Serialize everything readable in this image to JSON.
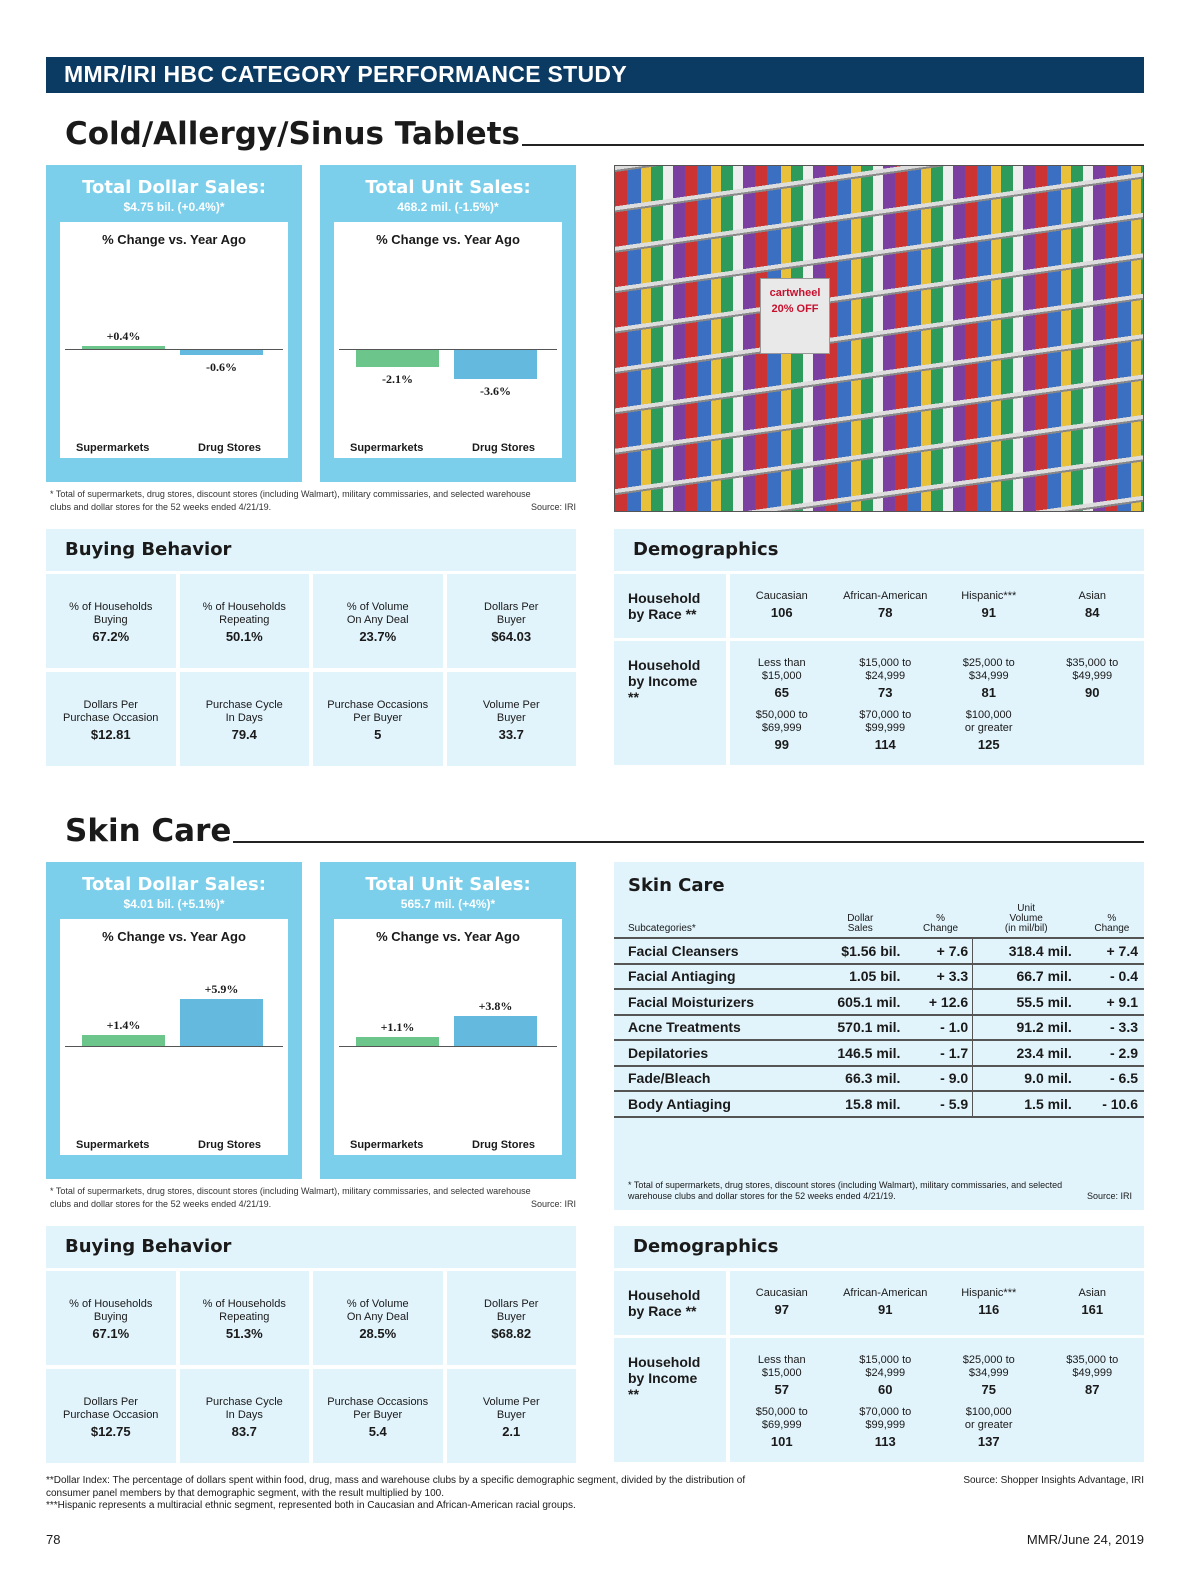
{
  "header": {
    "title": "MMR/IRI HBC CATEGORY PERFORMANCE STUDY"
  },
  "sections": [
    {
      "title": "Cold/Allergy/Sinus Tablets",
      "dollar": {
        "title": "Total Dollar Sales:",
        "subtitle": "$4.75 bil. (+0.4%)*"
      },
      "unit": {
        "title": "Total Unit Sales:",
        "subtitle": "468.2 mil. (-1.5%)*"
      },
      "footnote": "* Total of supermarkets, drug stores, discount stores (including Walmart), military commissaries, and selected warehouse clubs and dollar stores for the 52 weeks ended 4/21/19.",
      "source": "Source: IRI",
      "buying": {
        "title": "Buying Behavior",
        "cells": [
          {
            "label": "% of Households\nBuying",
            "value": "67.2%"
          },
          {
            "label": "% of Households\nRepeating",
            "value": "50.1%"
          },
          {
            "label": "% of Volume\nOn Any Deal",
            "value": "23.7%"
          },
          {
            "label": "Dollars Per\nBuyer",
            "value": "$64.03"
          },
          {
            "label": "Dollars Per\nPurchase Occasion",
            "value": "$12.81"
          },
          {
            "label": "Purchase Cycle\nIn Days",
            "value": "79.4"
          },
          {
            "label": "Purchase Occasions\nPer Buyer",
            "value": "5"
          },
          {
            "label": "Volume Per\nBuyer",
            "value": "33.7"
          }
        ]
      },
      "demographics": {
        "title": "Demographics",
        "race_label": "Household\nby Race **",
        "income_label": "Household\nby Income **",
        "race": [
          {
            "label": "Caucasian",
            "value": "106"
          },
          {
            "label": "African-American",
            "value": "78"
          },
          {
            "label": "Hispanic***",
            "value": "91"
          },
          {
            "label": "Asian",
            "value": "84"
          }
        ],
        "income": [
          {
            "label": "Less than\n$15,000",
            "value": "65"
          },
          {
            "label": "$15,000 to\n$24,999",
            "value": "73"
          },
          {
            "label": "$25,000 to\n$34,999",
            "value": "81"
          },
          {
            "label": "$35,000 to\n$49,999",
            "value": "90"
          },
          {
            "label": "$50,000 to\n$69,999",
            "value": "99"
          },
          {
            "label": "$70,000 to\n$99,999",
            "value": "114"
          },
          {
            "label": "$100,000\nor greater",
            "value": "125"
          }
        ]
      }
    },
    {
      "title": "Skin Care",
      "dollar": {
        "title": "Total Dollar Sales:",
        "subtitle": "$4.01 bil. (+5.1%)*"
      },
      "unit": {
        "title": "Total Unit Sales:",
        "subtitle": "565.7 mil. (+4%)*"
      },
      "footnote": "* Total of supermarkets, drug stores, discount stores (including Walmart), military commissaries, and selected warehouse clubs and dollar stores for the 52 weeks ended 4/21/19.",
      "source": "Source: IRI",
      "buying": {
        "title": "Buying Behavior",
        "cells": [
          {
            "label": "% of Households\nBuying",
            "value": "67.1%"
          },
          {
            "label": "% of Households\nRepeating",
            "value": "51.3%"
          },
          {
            "label": "% of Volume\nOn Any Deal",
            "value": "28.5%"
          },
          {
            "label": "Dollars Per\nBuyer",
            "value": "$68.82"
          },
          {
            "label": "Dollars Per\nPurchase Occasion",
            "value": "$12.75"
          },
          {
            "label": "Purchase Cycle\nIn Days",
            "value": "83.7"
          },
          {
            "label": "Purchase Occasions\nPer Buyer",
            "value": "5.4"
          },
          {
            "label": "Volume Per\nBuyer",
            "value": "2.1"
          }
        ]
      },
      "demographics": {
        "title": "Demographics",
        "race_label": "Household\nby Race **",
        "income_label": "Household\nby Income **",
        "race": [
          {
            "label": "Caucasian",
            "value": "97"
          },
          {
            "label": "African-American",
            "value": "91"
          },
          {
            "label": "Hispanic***",
            "value": "116"
          },
          {
            "label": "Asian",
            "value": "161"
          }
        ],
        "income": [
          {
            "label": "Less than\n$15,000",
            "value": "57"
          },
          {
            "label": "$15,000 to\n$24,999",
            "value": "60"
          },
          {
            "label": "$25,000 to\n$34,999",
            "value": "75"
          },
          {
            "label": "$35,000 to\n$49,999",
            "value": "87"
          },
          {
            "label": "$50,000 to\n$69,999",
            "value": "101"
          },
          {
            "label": "$70,000 to\n$99,999",
            "value": "113"
          },
          {
            "label": "$100,000\nor greater",
            "value": "137"
          }
        ]
      }
    }
  ],
  "chart_data": [
    {
      "type": "bar",
      "title": "% Change vs. Year Ago",
      "categories": [
        "Supermarkets",
        "Drug Stores"
      ],
      "values": [
        0.4,
        -0.6
      ],
      "labels": [
        "+0.4%",
        "-0.6%"
      ],
      "colors": [
        "#6cc58a",
        "#64b9df"
      ]
    },
    {
      "type": "bar",
      "title": "% Change vs. Year Ago",
      "categories": [
        "Supermarkets",
        "Drug Stores"
      ],
      "values": [
        -2.1,
        -3.6
      ],
      "labels": [
        "-2.1%",
        "-3.6%"
      ],
      "colors": [
        "#6cc58a",
        "#64b9df"
      ]
    },
    {
      "type": "bar",
      "title": "% Change vs. Year Ago",
      "categories": [
        "Supermarkets",
        "Drug Stores"
      ],
      "values": [
        1.4,
        5.9
      ],
      "labels": [
        "+1.4%",
        "+5.9%"
      ],
      "colors": [
        "#6cc58a",
        "#64b9df"
      ]
    },
    {
      "type": "bar",
      "title": "% Change vs. Year Ago",
      "categories": [
        "Supermarkets",
        "Drug Stores"
      ],
      "values": [
        1.1,
        3.8
      ],
      "labels": [
        "+1.1%",
        "+3.8%"
      ],
      "colors": [
        "#6cc58a",
        "#64b9df"
      ]
    }
  ],
  "skin_table": {
    "title": "Skin Care",
    "headers": [
      "Subcategories*",
      "Dollar\nSales",
      "%\nChange",
      "Unit\nVolume\n(in mil/bil)",
      "%\nChange"
    ],
    "rows": [
      [
        "Facial Cleansers",
        "$1.56 bil.",
        "+ 7.6",
        "318.4 mil.",
        "+ 7.4"
      ],
      [
        "Facial Antiaging",
        "1.05 bil.",
        "+ 3.3",
        "66.7 mil.",
        "- 0.4"
      ],
      [
        "Facial Moisturizers",
        "605.1 mil.",
        "+ 12.6",
        "55.5 mil.",
        "+ 9.1"
      ],
      [
        "Acne Treatments",
        "570.1 mil.",
        "- 1.0",
        "91.2 mil.",
        "- 3.3"
      ],
      [
        "Depilatories",
        "146.5 mil.",
        "- 1.7",
        "23.4 mil.",
        "- 2.9"
      ],
      [
        "Fade/Bleach",
        "66.3 mil.",
        "- 9.0",
        "9.0 mil.",
        "- 6.5"
      ],
      [
        "Body Antiaging",
        "15.8 mil.",
        "- 5.9",
        "1.5 mil.",
        "- 10.6"
      ]
    ],
    "footnote": "* Total of supermarkets, drug stores, discount stores (including Walmart), military commissaries, and selected warehouse clubs and dollar stores for the 52 weeks ended 4/21/19.",
    "source": "Source: IRI"
  },
  "photo": {
    "description_icon": "store-shelf-photo",
    "sign_text": "cartwheel 20% OFF"
  },
  "bottom": {
    "note1": "**Dollar Index: The percentage of dollars spent within food, drug, mass and warehouse clubs by a specific demographic segment, divided by the distribution of consumer panel members by that demographic segment, with the result multiplied by 100.",
    "note2": "***Hispanic represents a multiracial ethnic segment, represented both in Caucasian and African-American racial groups.",
    "source": "Source: Shopper Insights Advantage, IRI",
    "page": "78",
    "issue": "MMR/June 24, 2019"
  }
}
